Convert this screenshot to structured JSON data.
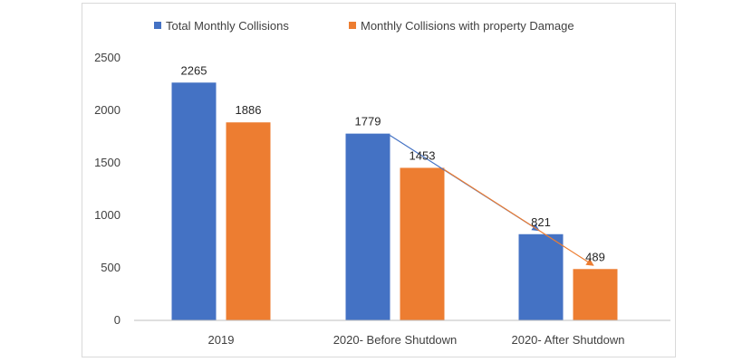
{
  "chart_data": {
    "type": "bar",
    "categories": [
      "2019",
      "2020- Before Shutdown",
      "2020- After Shutdown"
    ],
    "series": [
      {
        "name": "Total Monthly Collisions",
        "values": [
          2265,
          1779,
          821
        ]
      },
      {
        "name": "Monthly Collisions with property Damage",
        "values": [
          1886,
          1453,
          489
        ]
      }
    ],
    "title": "",
    "xlabel": "",
    "ylabel": "",
    "ylim": [
      0,
      2500
    ],
    "yticks": [
      0,
      500,
      1000,
      1500,
      2000,
      2500
    ],
    "grid": false,
    "legend_position": "top-center",
    "colors": {
      "series_0": "#4472c4",
      "series_1": "#ed7d31",
      "axis": "#bfbfbf"
    },
    "annotations": [
      {
        "type": "arrow",
        "from_series": 0,
        "from_category": 1,
        "to_category": 2,
        "color": "#4472c4"
      },
      {
        "type": "arrow",
        "from_series": 1,
        "from_category": 1,
        "to_category": 2,
        "color": "#ed7d31"
      }
    ]
  }
}
